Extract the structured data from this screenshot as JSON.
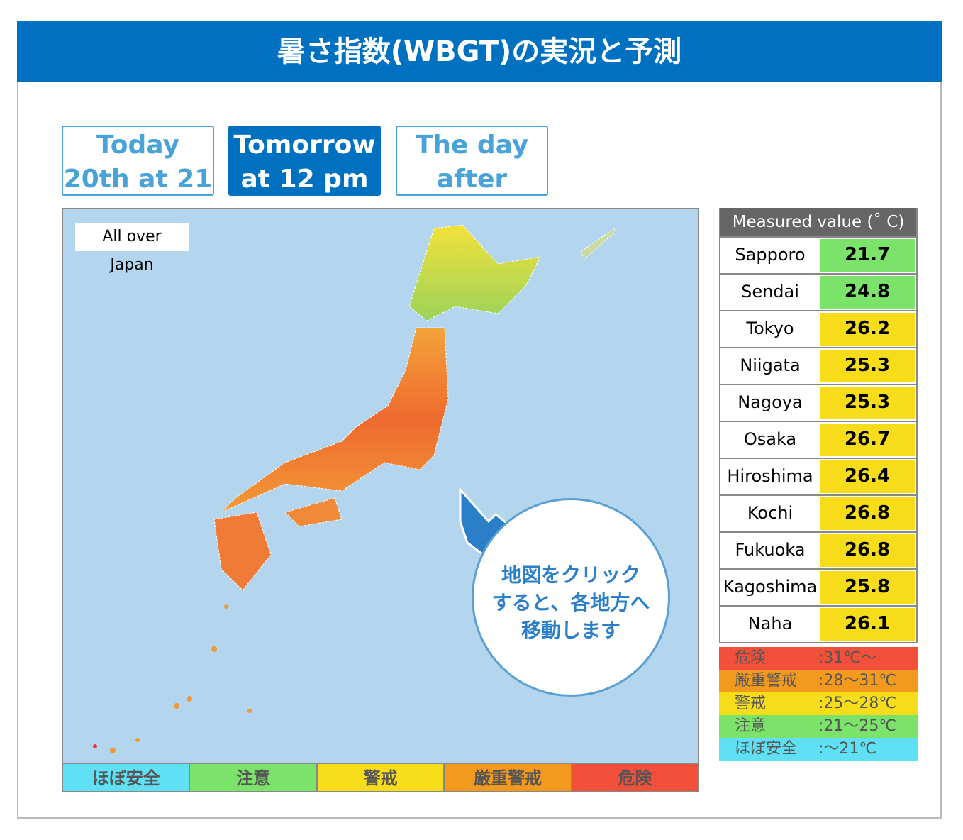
{
  "header": {
    "title": "暑さ指数(WBGT)の実況と予測"
  },
  "tabs": [
    {
      "lines": [
        "Today",
        "20th at 21"
      ]
    },
    {
      "lines": [
        "Tomorrow",
        "at 12 pm"
      ]
    },
    {
      "lines": [
        "The day",
        "after"
      ]
    }
  ],
  "map": {
    "area_label": [
      "All over",
      "Japan"
    ],
    "callout": [
      "地図をクリック",
      "すると、各地方へ",
      "移動します"
    ],
    "levels": [
      {
        "label": "ほぼ安全",
        "color": "#5fe0f5"
      },
      {
        "label": "注意",
        "color": "#7be36a"
      },
      {
        "label": "警戒",
        "color": "#f7dc1a"
      },
      {
        "label": "厳重警戒",
        "color": "#f39a1e"
      },
      {
        "label": "危険",
        "color": "#f2503a"
      }
    ]
  },
  "table": {
    "header": "Measured value (˚ C)",
    "rows": [
      {
        "city": "Sapporo",
        "value": "21.7",
        "color": "#7be36a"
      },
      {
        "city": "Sendai",
        "value": "24.8",
        "color": "#7be36a"
      },
      {
        "city": "Tokyo",
        "value": "26.2",
        "color": "#f7dc1a"
      },
      {
        "city": "Niigata",
        "value": "25.3",
        "color": "#f7dc1a"
      },
      {
        "city": "Nagoya",
        "value": "25.3",
        "color": "#f7dc1a"
      },
      {
        "city": "Osaka",
        "value": "26.7",
        "color": "#f7dc1a"
      },
      {
        "city": "Hiroshima",
        "value": "26.4",
        "color": "#f7dc1a"
      },
      {
        "city": "Kochi",
        "value": "26.8",
        "color": "#f7dc1a"
      },
      {
        "city": "Fukuoka",
        "value": "26.8",
        "color": "#f7dc1a"
      },
      {
        "city": "Kagoshima",
        "value": "25.8",
        "color": "#f7dc1a"
      },
      {
        "city": "Naha",
        "value": "26.1",
        "color": "#f7dc1a"
      }
    ]
  },
  "legend": [
    {
      "name": "危険",
      "range": ":31℃～",
      "color": "#f2503a"
    },
    {
      "name": "厳重警戒",
      "range": ":28～31℃",
      "color": "#f39a1e"
    },
    {
      "name": "警戒",
      "range": ":25～28℃",
      "color": "#f7dc1a"
    },
    {
      "name": "注意",
      "range": ":21～25℃",
      "color": "#7be36a"
    },
    {
      "name": "ほぼ安全",
      "range": ":～21℃",
      "color": "#5fe0f5"
    }
  ]
}
